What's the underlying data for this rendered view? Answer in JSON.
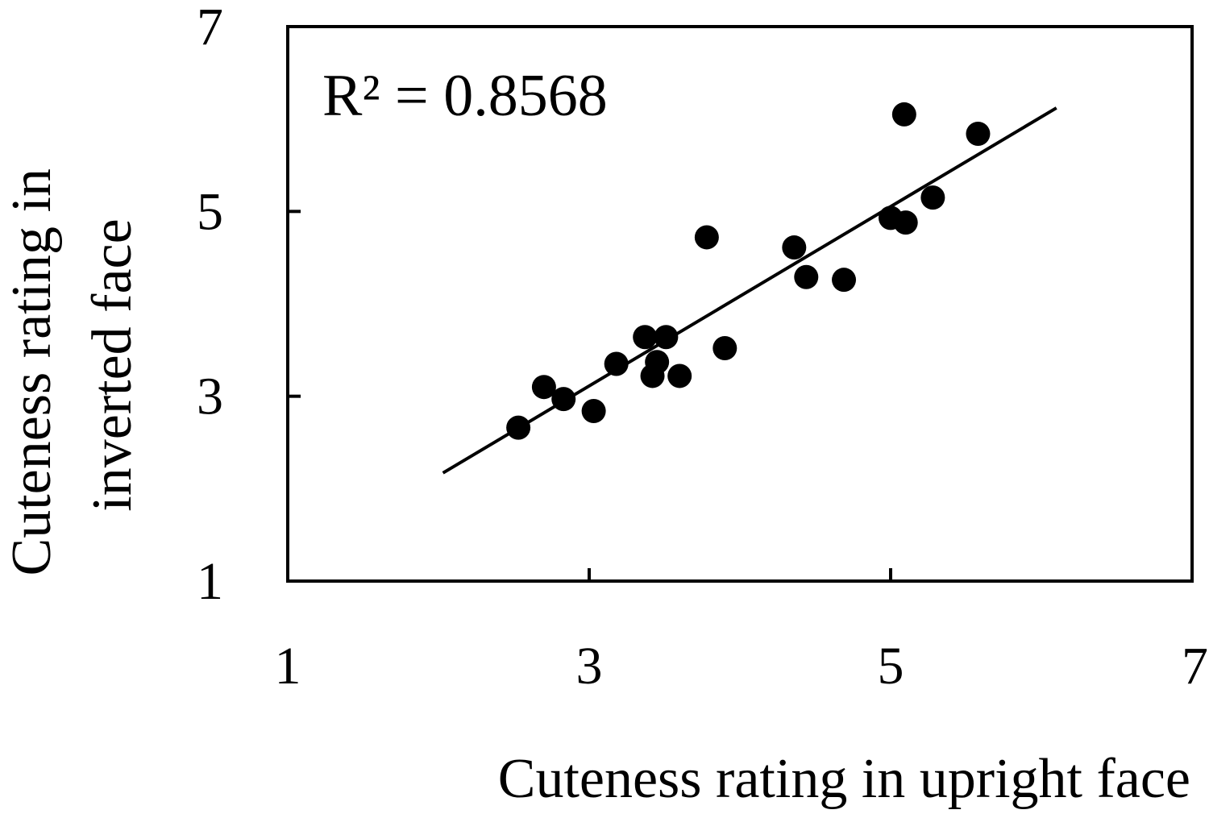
{
  "chart_data": {
    "type": "scatter",
    "title": "",
    "xlabel": "Cuteness rating in upright face",
    "ylabel_lines": [
      "Cuteness rating in",
      "inverted face"
    ],
    "xlim": [
      1,
      7
    ],
    "ylim": [
      1,
      7
    ],
    "xticks": [
      "1",
      "3",
      "5",
      "7"
    ],
    "yticks": [
      "1",
      "3",
      "5",
      "7"
    ],
    "grid": false,
    "legend": "none",
    "annotation": "R² = 0.8568",
    "marker_color": "#000000",
    "points": [
      {
        "x": 2.53,
        "y": 2.66
      },
      {
        "x": 2.7,
        "y": 3.1
      },
      {
        "x": 2.83,
        "y": 2.97
      },
      {
        "x": 3.03,
        "y": 2.84
      },
      {
        "x": 3.18,
        "y": 3.35
      },
      {
        "x": 3.37,
        "y": 3.64
      },
      {
        "x": 3.42,
        "y": 3.22
      },
      {
        "x": 3.45,
        "y": 3.37
      },
      {
        "x": 3.51,
        "y": 3.64
      },
      {
        "x": 3.6,
        "y": 3.22
      },
      {
        "x": 3.78,
        "y": 4.72
      },
      {
        "x": 3.9,
        "y": 3.52
      },
      {
        "x": 4.36,
        "y": 4.61
      },
      {
        "x": 4.44,
        "y": 4.29
      },
      {
        "x": 4.69,
        "y": 4.26
      },
      {
        "x": 5.0,
        "y": 4.93
      },
      {
        "x": 5.1,
        "y": 4.88
      },
      {
        "x": 5.09,
        "y": 6.05
      },
      {
        "x": 5.28,
        "y": 5.15
      },
      {
        "x": 5.58,
        "y": 5.84
      }
    ],
    "trendline": {
      "x": [
        2.03,
        6.1
      ],
      "y": [
        2.17,
        6.12
      ]
    }
  }
}
